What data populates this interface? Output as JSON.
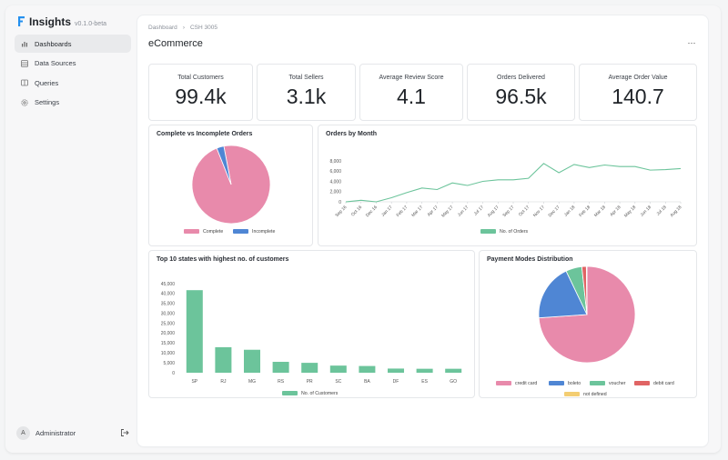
{
  "app": {
    "name": "Insights",
    "version": "v0.1.0-beta"
  },
  "sidebar": {
    "items": [
      {
        "label": "Dashboards",
        "icon": "bar-chart-icon",
        "active": true
      },
      {
        "label": "Data Sources",
        "icon": "database-icon",
        "active": false
      },
      {
        "label": "Queries",
        "icon": "book-icon",
        "active": false
      },
      {
        "label": "Settings",
        "icon": "gear-icon",
        "active": false
      }
    ],
    "user": {
      "initial": "A",
      "name": "Administrator"
    }
  },
  "header": {
    "breadcrumb": [
      "Dashboard",
      "CSH 3005"
    ],
    "title": "eCommerce",
    "more": "···"
  },
  "stats": [
    {
      "label": "Total Customers",
      "value": "99.4k"
    },
    {
      "label": "Total Sellers",
      "value": "3.1k"
    },
    {
      "label": "Average Review Score",
      "value": "4.1"
    },
    {
      "label": "Orders Delivered",
      "value": "96.5k"
    },
    {
      "label": "Average Order Value",
      "value": "140.7"
    }
  ],
  "colors": {
    "pink": "#e88aab",
    "blue": "#4f86d4",
    "green": "#6cc49b",
    "red": "#e06464",
    "yellow": "#f3cd72"
  },
  "chart_data": [
    {
      "type": "pie",
      "title": "Complete vs Incomplete Orders",
      "labels": [
        "Complete",
        "Incomplete"
      ],
      "values": [
        97,
        3
      ],
      "colors": [
        "#e88aab",
        "#4f86d4"
      ]
    },
    {
      "type": "line",
      "title": "Orders by Month",
      "x": [
        "Sep 16",
        "Oct 16",
        "Dec 16",
        "Jan 17",
        "Feb 17",
        "Mar 17",
        "Apr 17",
        "May 17",
        "Jun 17",
        "Jul 17",
        "Aug 17",
        "Sep 17",
        "Oct 17",
        "Nov 17",
        "Dec 17",
        "Jan 18",
        "Feb 18",
        "Mar 18",
        "Apr 18",
        "May 18",
        "Jun 18",
        "Jul 18",
        "Aug 18"
      ],
      "y_ticks": [
        "0",
        "2,000",
        "4,000",
        "6,000",
        "8,000"
      ],
      "ylim": [
        0,
        8000
      ],
      "series": [
        {
          "name": "No. of Orders",
          "color": "#6cc49b",
          "values": [
            0,
            300,
            0,
            800,
            1800,
            2700,
            2400,
            3700,
            3200,
            4000,
            4300,
            4300,
            4600,
            7500,
            5700,
            7300,
            6700,
            7200,
            6900,
            6900,
            6200,
            6300,
            6500
          ]
        }
      ],
      "legend": "bottom"
    },
    {
      "type": "bar",
      "title": "Top 10 states with highest no. of customers",
      "categories": [
        "SP",
        "RJ",
        "MG",
        "RS",
        "PR",
        "SC",
        "BA",
        "DF",
        "ES",
        "GO"
      ],
      "y_ticks": [
        "0",
        "5,000",
        "10,000",
        "15,000",
        "20,000",
        "25,000",
        "30,000",
        "35,000",
        "40,000",
        "45,000"
      ],
      "ylim": [
        0,
        45000
      ],
      "series": [
        {
          "name": "No. of Customers",
          "color": "#6cc49b",
          "values": [
            41700,
            12900,
            11600,
            5500,
            5000,
            3600,
            3400,
            2100,
            2000,
            2000
          ]
        }
      ],
      "legend": "bottom"
    },
    {
      "type": "pie",
      "title": "Payment Modes Distribution",
      "labels": [
        "credit card",
        "boleto",
        "voucher",
        "debit card",
        "not defined"
      ],
      "values": [
        73.9,
        19.0,
        5.4,
        1.5,
        0.2
      ],
      "colors": [
        "#e88aab",
        "#4f86d4",
        "#6cc49b",
        "#e06464",
        "#f3cd72"
      ]
    }
  ]
}
